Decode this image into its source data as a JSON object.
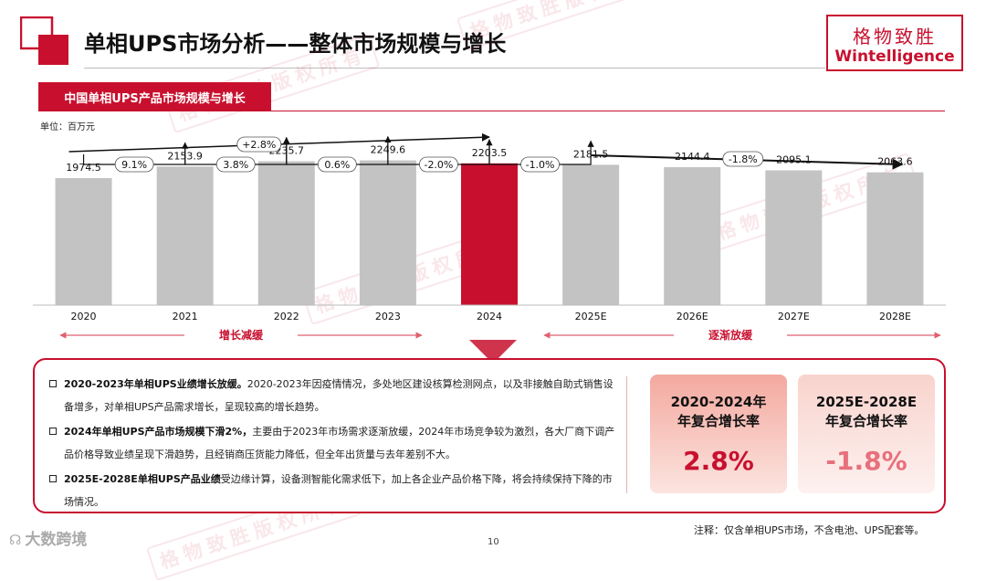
{
  "header": {
    "title": "单相UPS市场分析——整体市场规模与增长",
    "brand_cn": "格物致胜",
    "brand_en": "Wintelligence"
  },
  "chart_section": {
    "title": "中国单相UPS产品市场规模与增长",
    "unit": "单位：百万元"
  },
  "chart_data": {
    "type": "bar",
    "categories": [
      "2020",
      "2021",
      "2022",
      "2023",
      "2024",
      "2025E",
      "2026E",
      "2027E",
      "2028E"
    ],
    "values": [
      1974.5,
      2153.9,
      2235.7,
      2249.6,
      2203.5,
      2181.5,
      2144.4,
      2095.1,
      2063.6
    ],
    "value_labels": [
      "1974.5",
      "2153.9",
      "2235.7",
      "2249.6",
      "2203.5",
      "2181.5",
      "2144.4",
      "2095.1",
      "2063.6"
    ],
    "highlight_index": 4,
    "growth_labels": [
      "9.1%",
      "3.8%",
      "0.6%",
      "-2.0%",
      "-1.0%"
    ],
    "cagr_labels": [
      "+2.8%",
      "-1.8%"
    ],
    "phase_labels": [
      "增长减缓",
      "逐渐放缓"
    ],
    "colors": {
      "bar": "#c3c3c3",
      "highlight": "#c8102e",
      "accent": "#c8102e",
      "arrow": "#e06070"
    }
  },
  "bullets": [
    {
      "bold": "2020-2023年单相UPS业绩增长放缓。",
      "text": "2020-2023年因疫情情况，多处地区建设核算检测网点，以及非接触自助式销售设备增多，对单相UPS产品需求增长，呈现较高的增长趋势。"
    },
    {
      "bold": "2024年单相UPS产品市场规模下滑2%，",
      "text": "主要由于2023年市场需求逐渐放缓，2024年市场竞争较为激烈，各大厂商下调产品价格导致业绩呈现下滑趋势，且经销商压货能力降低，但全年出货量与去年差别不大。"
    },
    {
      "bold": "2025E-2028E单相UPS产品业绩",
      "text": "受边缘计算，设备测智能化需求低下，加上各企业产品价格下降，将会持续保持下降的市场情况。"
    }
  ],
  "cagr_cards": [
    {
      "label_line1": "2020-2024年",
      "label_line2": "年复合增长率",
      "value": "2.8%"
    },
    {
      "label_line1": "2025E-2028E",
      "label_line2": "年复合增长率",
      "value": "-1.8%"
    }
  ],
  "footnote": "注释：仅含单相UPS市场，不含电池、UPS配套等。",
  "page_number": "10",
  "source_logo": "大数跨境",
  "watermark": "格物致胜版权所有"
}
